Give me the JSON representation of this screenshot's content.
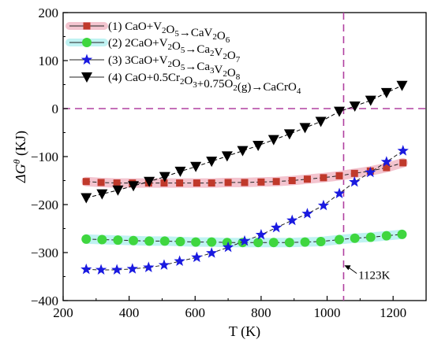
{
  "chart_data": {
    "type": "line",
    "xlabel": "T (K)",
    "ylabel": "ΔGθ (KJ)",
    "xlim": [
      200,
      1300
    ],
    "ylim": [
      -400,
      200
    ],
    "xticks": [
      "200",
      "400",
      "600",
      "800",
      "1000",
      "1200"
    ],
    "yticks": [
      "-400",
      "-300",
      "-200",
      "-100",
      "0",
      "100",
      "200"
    ],
    "reference_lines": {
      "y": 0,
      "x": 1050,
      "style": "dashed",
      "color": "#b040a0"
    },
    "annotation": {
      "text": "1123K",
      "x": 1050,
      "y": -325,
      "text_x": 1085,
      "text_y": -350
    },
    "legend_position": "top-left",
    "series": [
      {
        "name": "(1) CaO+V2O5→CaV2O6",
        "color": "#c0392b",
        "band": "#f3c4cf",
        "marker": "square",
        "x": [
          270,
          315,
          363,
          410,
          459,
          506,
          553,
          605,
          650,
          700,
          750,
          800,
          846,
          894,
          940,
          989,
          1037,
          1083,
          1131,
          1180,
          1230
        ],
        "y": [
          -152,
          -154,
          -155,
          -155,
          -155,
          -155,
          -155,
          -155,
          -155,
          -154,
          -154,
          -153,
          -152,
          -150,
          -147,
          -144,
          -140,
          -135,
          -130,
          -123,
          -113
        ]
      },
      {
        "name": "(2) 2CaO+V2O5→Ca2V2O7",
        "color": "#3fd63f",
        "band": "#bff2f2",
        "marker": "circle",
        "x": [
          270,
          318,
          366,
          413,
          461,
          508,
          555,
          602,
          650,
          697,
          744,
          791,
          838,
          886,
          933,
          981,
          1037,
          1084,
          1132,
          1180,
          1227
        ],
        "y": [
          -272,
          -273,
          -274,
          -275,
          -276,
          -276,
          -277,
          -278,
          -278,
          -279,
          -279,
          -279,
          -279,
          -279,
          -278,
          -277,
          -273,
          -270,
          -268,
          -265,
          -262
        ]
      },
      {
        "name": "(3) 3CaO+V2O5→Ca3V2O8",
        "color": "#1a1ae0",
        "band": "none",
        "marker": "star",
        "x": [
          270,
          315,
          363,
          410,
          459,
          506,
          553,
          605,
          650,
          700,
          750,
          800,
          846,
          894,
          940,
          989,
          1037,
          1083,
          1131,
          1180,
          1230
        ],
        "y": [
          -335,
          -336,
          -336,
          -334,
          -331,
          -326,
          -318,
          -310,
          -301,
          -289,
          -276,
          -263,
          -248,
          -233,
          -219,
          -202,
          -177,
          -153,
          -133,
          -111,
          -88
        ]
      },
      {
        "name": "(4) CaO+0.5Cr2O3+0.75O2(g)→CaCrO4",
        "color": "#000000",
        "band": "none",
        "marker": "triangle-down",
        "x": [
          270,
          318,
          366,
          413,
          461,
          508,
          555,
          602,
          650,
          697,
          744,
          791,
          838,
          886,
          933,
          981,
          1037,
          1084,
          1132,
          1180,
          1227
        ],
        "y": [
          -186,
          -178,
          -170,
          -161,
          -152,
          -142,
          -131,
          -121,
          -110,
          -99,
          -88,
          -77,
          -65,
          -53,
          -40,
          -27,
          -6,
          5,
          17,
          33,
          48
        ]
      }
    ]
  }
}
